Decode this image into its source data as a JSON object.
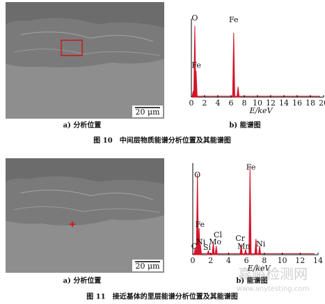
{
  "chart_data": [
    {
      "type": "stem",
      "xlabel": "E/keV",
      "color": "#d4142a",
      "x": [
        0.27,
        0.52,
        0.71,
        6.4,
        7.06
      ],
      "values": [
        8,
        95,
        35,
        86,
        14
      ],
      "xlim": [
        0,
        20
      ],
      "xticks": [
        0,
        2,
        4,
        6,
        8,
        10,
        12,
        14,
        16,
        18,
        20
      ],
      "ylim": [
        0,
        100
      ],
      "annotations": [
        {
          "text": "O",
          "x": 0.52,
          "y": 105
        },
        {
          "text": "Fe",
          "x": 0.75,
          "y": 42
        },
        {
          "text": "Fe",
          "x": 6.4,
          "y": 103
        }
      ]
    },
    {
      "type": "stem",
      "xlabel": "E/keV",
      "color": "#d4142a",
      "x": [
        0.27,
        0.52,
        0.71,
        0.85,
        1.74,
        2.29,
        2.62,
        5.41,
        5.9,
        6.4,
        7.06,
        7.47
      ],
      "values": [
        8,
        92,
        30,
        12,
        5,
        14,
        10,
        12,
        6,
        100,
        18,
        10
      ],
      "xlim": [
        0,
        14
      ],
      "xticks": [
        0,
        2,
        4,
        6,
        8,
        10,
        12,
        14
      ],
      "ylim": [
        0,
        100
      ],
      "annotations": [
        {
          "text": "O",
          "x": 0.52,
          "y": 90
        },
        {
          "text": "Fe",
          "x": 0.8,
          "y": 34
        },
        {
          "text": "C",
          "x": 0.15,
          "y": 9
        },
        {
          "text": "Ni",
          "x": 0.9,
          "y": 14
        },
        {
          "text": "Si",
          "x": 1.6,
          "y": 8
        },
        {
          "text": "Cl",
          "x": 2.8,
          "y": 22
        },
        {
          "text": "Mo",
          "x": 2.5,
          "y": 14
        },
        {
          "text": "Cr",
          "x": 5.3,
          "y": 18
        },
        {
          "text": "Mn",
          "x": 5.7,
          "y": 9
        },
        {
          "text": "Ni",
          "x": 7.6,
          "y": 12
        },
        {
          "text": "Fe",
          "x": 6.5,
          "y": 99
        }
      ]
    }
  ],
  "figures": [
    {
      "panel_a": "a) 分析位置",
      "scale_bar": "20 μm",
      "panel_b": "b) 能谱图",
      "caption": "图 10　中间层物质能谱分析位置及其能谱图"
    },
    {
      "panel_a": "a) 分析位置",
      "scale_bar": "20 μm",
      "panel_b": "b) 能谱图",
      "caption": "图 11　接近基体的里层能谱分析位置及其能谱图"
    }
  ],
  "watermark": {
    "text": "嘉峪检测网",
    "url": "www.anytesting.com"
  }
}
